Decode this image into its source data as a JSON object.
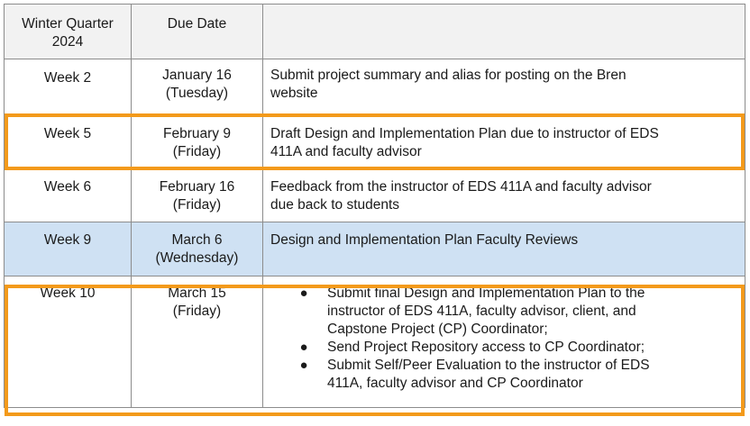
{
  "header": {
    "col1": "Winter Quarter 2024",
    "col1_line1": "Winter Quarter",
    "col1_line2": "2024",
    "col2": "Due Date",
    "col3": ""
  },
  "rows": [
    {
      "week": "Week 2",
      "date": "January 16",
      "day": "(Tuesday)",
      "task": "Submit project summary and alias for posting on the Bren website",
      "task_line1": "Submit project summary and alias for posting on the Bren",
      "task_line2": "website"
    },
    {
      "week": "Week 5",
      "date": "February 9",
      "day": "(Friday)",
      "task_line1": "Draft Design and Implementation Plan due to instructor of EDS",
      "task_line2": "411A and faculty advisor",
      "highlighted": true
    },
    {
      "week": "Week 6",
      "date": "February 16",
      "day": "(Friday)",
      "task_line1": "Feedback from the instructor of EDS 411A and faculty advisor",
      "task_line2": "due back to students"
    },
    {
      "week": "Week 9",
      "date": "March 6",
      "day": "(Wednesday)",
      "task_line1": "Design and Implementation Plan Faculty Reviews",
      "shaded": true
    },
    {
      "week": "Week 10",
      "date": "March 15",
      "day": "(Friday)",
      "highlighted": true,
      "tasks": [
        {
          "lines": [
            "Submit final Design and Implementation Plan to the",
            "instructor of EDS 411A, faculty advisor, client, and",
            "Capstone Project (CP) Coordinator;"
          ]
        },
        {
          "lines": [
            "Send Project Repository access to CP Coordinator;"
          ]
        },
        {
          "lines": [
            "Submit Self/Peer Evaluation to the instructor of EDS",
            "411A, faculty advisor and CP Coordinator"
          ]
        }
      ]
    }
  ],
  "bullet": "●",
  "colors": {
    "highlight_border": "#f39a1b",
    "shaded_row": "#cfe1f3",
    "header_bg": "#f2f2f2",
    "grid": "#8c8c8c"
  }
}
